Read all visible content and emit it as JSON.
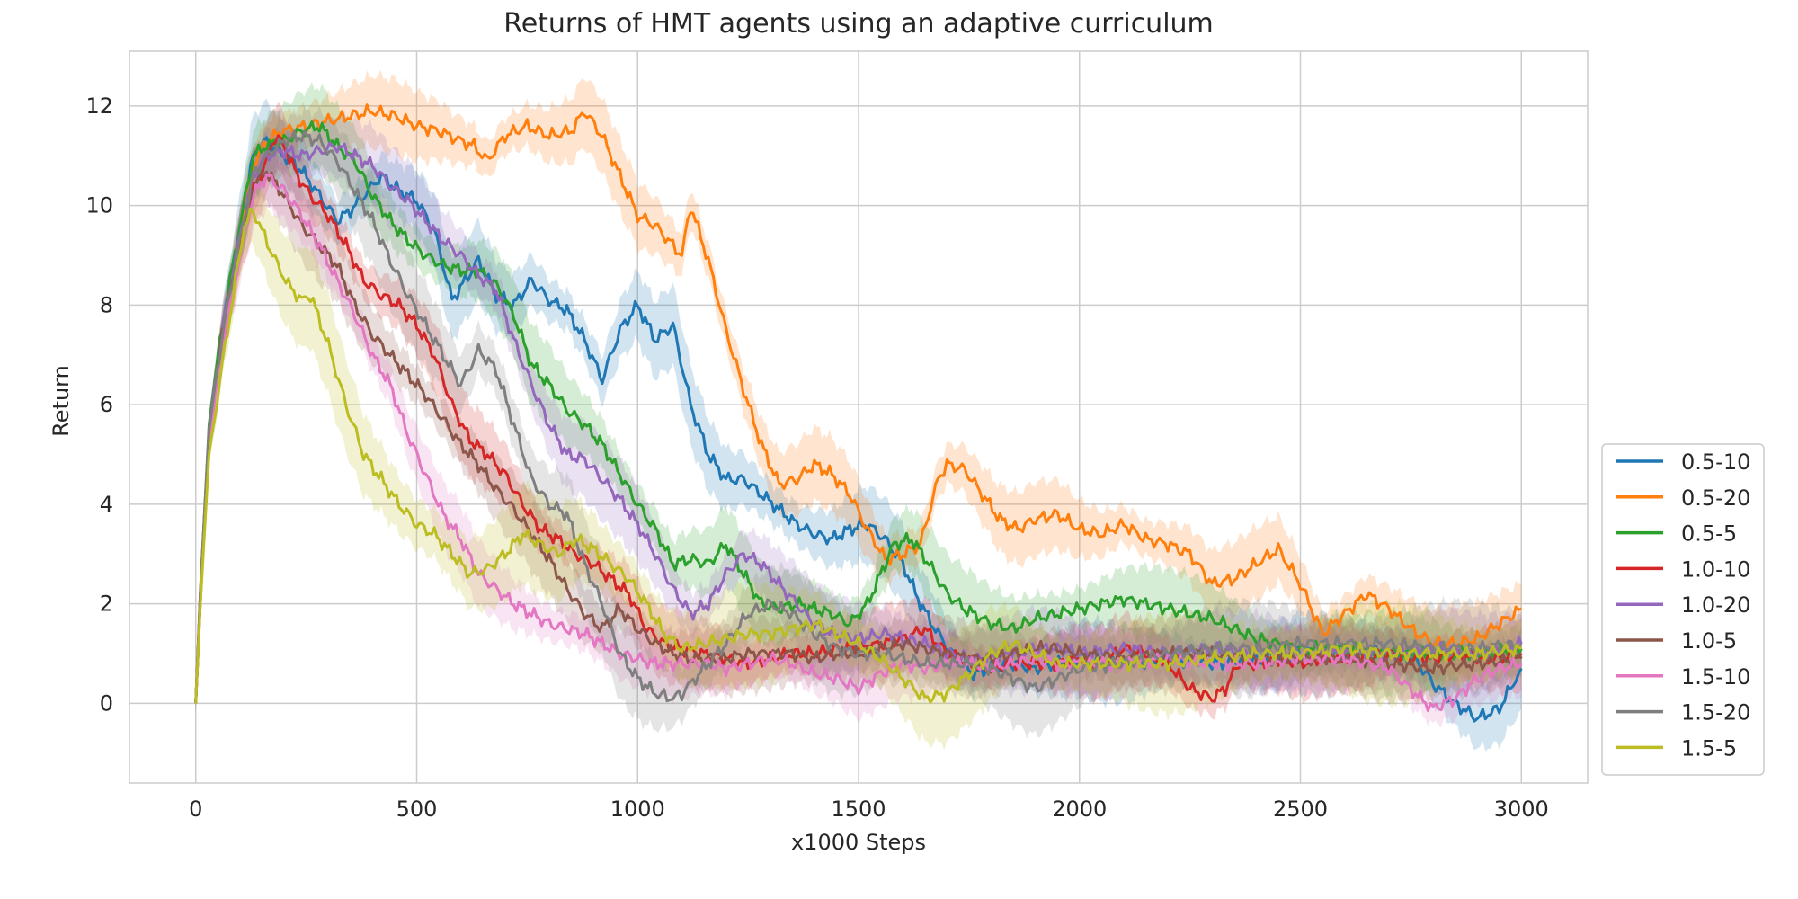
{
  "chart_data": {
    "type": "line",
    "title": "Returns of HMT agents using an adaptive curriculum",
    "xlabel": "x1000 Steps",
    "ylabel": "Return",
    "xlim": [
      -150,
      3150
    ],
    "ylim": [
      -1.6,
      13.1
    ],
    "xticks": [
      0,
      500,
      1000,
      1500,
      2000,
      2500,
      3000
    ],
    "yticks": [
      0,
      2,
      4,
      6,
      8,
      10,
      12
    ],
    "grid": true,
    "legend_position": "lower-right-outside",
    "series": [
      {
        "name": "0.5-10",
        "color": "#1f77b4",
        "band": 0.6,
        "x": [
          0,
          10,
          30,
          60,
          100,
          130,
          160,
          200,
          240,
          280,
          320,
          350,
          380,
          420,
          460,
          500,
          540,
          580,
          610,
          640,
          680,
          720,
          760,
          800,
          840,
          880,
          920,
          960,
          1000,
          1040,
          1080,
          1120,
          1160,
          1200,
          1240,
          1280,
          1320,
          1360,
          1400,
          1440,
          1480,
          1520,
          1560,
          1600,
          1640,
          1680,
          1720,
          1760,
          1800,
          1850,
          1900,
          2000,
          2100,
          2200,
          2300,
          2400,
          2500,
          2600,
          2700,
          2760,
          2800,
          2850,
          2900,
          2950,
          3000
        ],
        "y": [
          0,
          2.0,
          5.5,
          7.5,
          9.5,
          11.0,
          11.3,
          11.0,
          10.7,
          10.2,
          9.7,
          9.9,
          10.2,
          10.6,
          10.3,
          10.1,
          9.5,
          8.1,
          8.5,
          8.9,
          8.2,
          8.0,
          8.5,
          8.1,
          7.9,
          7.3,
          6.5,
          7.5,
          8.0,
          7.3,
          7.6,
          6.0,
          5.0,
          4.5,
          4.5,
          4.2,
          3.9,
          3.6,
          3.4,
          3.3,
          3.5,
          3.6,
          3.3,
          2.8,
          2.0,
          1.4,
          0.9,
          0.6,
          0.7,
          0.8,
          0.7,
          0.9,
          0.8,
          0.9,
          0.8,
          0.9,
          1.0,
          1.0,
          1.0,
          0.9,
          0.4,
          0.0,
          -0.3,
          -0.1,
          0.7
        ]
      },
      {
        "name": "0.5-20",
        "color": "#ff7f0e",
        "band": 0.55,
        "x": [
          0,
          10,
          30,
          60,
          100,
          130,
          160,
          200,
          250,
          300,
          350,
          400,
          450,
          500,
          550,
          600,
          630,
          660,
          700,
          750,
          800,
          850,
          880,
          920,
          960,
          1000,
          1040,
          1080,
          1100,
          1120,
          1160,
          1200,
          1240,
          1280,
          1320,
          1360,
          1400,
          1440,
          1480,
          1520,
          1560,
          1600,
          1640,
          1680,
          1700,
          1740,
          1780,
          1820,
          1860,
          1900,
          1950,
          2000,
          2050,
          2100,
          2150,
          2200,
          2250,
          2300,
          2350,
          2400,
          2450,
          2500,
          2550,
          2600,
          2650,
          2700,
          2750,
          2800,
          2850,
          2900,
          2950,
          3000
        ],
        "y": [
          0,
          2.2,
          5.5,
          7.5,
          9.5,
          10.8,
          11.3,
          11.5,
          11.6,
          11.7,
          11.8,
          11.9,
          11.8,
          11.6,
          11.5,
          11.3,
          11.2,
          10.9,
          11.4,
          11.6,
          11.4,
          11.5,
          11.9,
          11.4,
          10.6,
          9.8,
          9.6,
          9.2,
          9.0,
          10.0,
          8.9,
          7.5,
          6.3,
          5.2,
          4.4,
          4.5,
          4.8,
          4.6,
          4.2,
          3.5,
          2.9,
          3.0,
          3.2,
          4.5,
          4.8,
          4.7,
          4.2,
          3.7,
          3.5,
          3.7,
          3.8,
          3.5,
          3.4,
          3.6,
          3.3,
          3.2,
          3.0,
          2.4,
          2.5,
          2.8,
          3.1,
          2.4,
          1.4,
          1.8,
          2.2,
          1.9,
          1.5,
          1.2,
          1.2,
          1.3,
          1.6,
          1.9
        ]
      },
      {
        "name": "0.5-5",
        "color": "#2ca02c",
        "band": 0.6,
        "x": [
          0,
          10,
          30,
          60,
          100,
          130,
          160,
          200,
          240,
          280,
          320,
          360,
          400,
          440,
          480,
          520,
          560,
          600,
          640,
          680,
          720,
          760,
          800,
          840,
          880,
          920,
          960,
          1000,
          1040,
          1080,
          1120,
          1160,
          1200,
          1240,
          1280,
          1320,
          1360,
          1400,
          1440,
          1480,
          1520,
          1560,
          1580,
          1620,
          1660,
          1700,
          1740,
          1800,
          1850,
          1900,
          1950,
          2000,
          2050,
          2100,
          2150,
          2200,
          2250,
          2300,
          2350,
          2400,
          2450,
          2500,
          2600,
          2700,
          2800,
          2900,
          3000
        ],
        "y": [
          0,
          2.1,
          5.6,
          7.6,
          9.6,
          11.0,
          11.2,
          11.3,
          11.5,
          11.6,
          11.2,
          10.9,
          10.2,
          9.7,
          9.3,
          9.0,
          8.8,
          8.7,
          8.7,
          8.4,
          7.8,
          6.8,
          6.4,
          5.9,
          5.6,
          5.2,
          4.6,
          4.0,
          3.5,
          2.8,
          2.9,
          2.8,
          3.2,
          2.6,
          2.0,
          1.9,
          2.0,
          1.9,
          1.8,
          1.6,
          2.0,
          2.8,
          3.2,
          3.3,
          2.8,
          2.2,
          1.9,
          1.6,
          1.5,
          1.7,
          1.8,
          1.9,
          2.0,
          2.1,
          2.0,
          1.9,
          1.8,
          1.7,
          1.5,
          1.3,
          1.2,
          1.1,
          1.1,
          1.0,
          1.0,
          1.0,
          1.1
        ]
      },
      {
        "name": "1.0-10",
        "color": "#d62728",
        "band": 0.55,
        "x": [
          0,
          10,
          30,
          60,
          100,
          130,
          160,
          180,
          200,
          230,
          260,
          300,
          340,
          380,
          420,
          460,
          500,
          540,
          580,
          620,
          660,
          700,
          740,
          780,
          820,
          860,
          900,
          940,
          980,
          1020,
          1060,
          1100,
          1150,
          1200,
          1250,
          1300,
          1350,
          1400,
          1450,
          1500,
          1550,
          1600,
          1650,
          1700,
          1750,
          1800,
          1850,
          1900,
          1950,
          2000,
          2050,
          2100,
          2150,
          2200,
          2250,
          2300,
          2330,
          2360,
          2400,
          2450,
          2500,
          2550,
          2600,
          2650,
          2700,
          2750,
          2800,
          2850,
          2900,
          2950,
          3000
        ],
        "y": [
          0,
          2.0,
          5.4,
          7.4,
          9.2,
          10.3,
          10.9,
          11.4,
          11.2,
          10.6,
          10.2,
          9.8,
          9.2,
          8.5,
          8.2,
          8.0,
          7.6,
          7.0,
          6.0,
          5.3,
          5.0,
          4.6,
          4.0,
          3.5,
          3.3,
          3.0,
          2.8,
          2.5,
          2.2,
          1.5,
          1.2,
          1.1,
          1.0,
          0.9,
          0.8,
          0.9,
          1.0,
          1.0,
          1.1,
          1.1,
          1.2,
          1.3,
          1.5,
          1.0,
          0.8,
          0.7,
          0.8,
          0.8,
          0.8,
          0.9,
          0.8,
          1.1,
          1.0,
          0.8,
          0.3,
          0.1,
          0.3,
          0.8,
          0.8,
          0.9,
          0.8,
          0.9,
          0.9,
          0.9,
          1.0,
          0.9,
          0.9,
          1.0,
          0.9,
          0.9,
          1.0
        ]
      },
      {
        "name": "1.0-20",
        "color": "#9467bd",
        "band": 0.6,
        "x": [
          0,
          10,
          30,
          60,
          100,
          130,
          160,
          200,
          240,
          280,
          320,
          360,
          400,
          440,
          480,
          520,
          560,
          600,
          640,
          680,
          720,
          760,
          800,
          840,
          880,
          920,
          960,
          1000,
          1040,
          1080,
          1120,
          1160,
          1200,
          1240,
          1280,
          1320,
          1360,
          1400,
          1440,
          1500,
          1560,
          1600,
          1650,
          1700,
          1750,
          1800,
          1850,
          1900,
          1950,
          2000,
          2100,
          2200,
          2300,
          2400,
          2500,
          2600,
          2700,
          2800,
          2900,
          3000
        ],
        "y": [
          0,
          2.1,
          5.5,
          7.5,
          9.4,
          10.6,
          11.0,
          11.1,
          11.0,
          11.1,
          11.2,
          11.0,
          10.8,
          10.4,
          10.1,
          9.7,
          9.3,
          9.0,
          8.6,
          8.3,
          7.3,
          6.4,
          5.6,
          5.0,
          4.9,
          4.5,
          4.1,
          3.6,
          3.0,
          2.3,
          1.8,
          2.0,
          2.6,
          3.0,
          2.8,
          2.4,
          2.0,
          1.6,
          1.4,
          1.3,
          1.4,
          1.3,
          1.2,
          1.0,
          0.9,
          0.9,
          1.0,
          1.1,
          1.1,
          1.0,
          1.1,
          1.0,
          1.1,
          1.0,
          1.0,
          1.0,
          1.0,
          1.1,
          1.0,
          1.2
        ]
      },
      {
        "name": "1.0-5",
        "color": "#8c564b",
        "band": 0.55,
        "x": [
          0,
          10,
          30,
          60,
          100,
          130,
          160,
          200,
          240,
          280,
          320,
          360,
          400,
          440,
          480,
          520,
          560,
          600,
          640,
          680,
          720,
          760,
          800,
          840,
          880,
          920,
          960,
          1000,
          1040,
          1080,
          1120,
          1160,
          1200,
          1250,
          1300,
          1350,
          1400,
          1450,
          1500,
          1550,
          1600,
          1650,
          1700,
          1750,
          1800,
          1850,
          1900,
          1950,
          2000,
          2100,
          2200,
          2300,
          2400,
          2500,
          2600,
          2700,
          2800,
          2900,
          3000
        ],
        "y": [
          0,
          1.9,
          5.4,
          7.4,
          9.1,
          10.4,
          10.7,
          10.2,
          9.6,
          9.2,
          8.8,
          8.0,
          7.4,
          7.0,
          6.6,
          6.2,
          5.7,
          5.2,
          4.8,
          4.3,
          3.9,
          3.4,
          2.9,
          2.3,
          1.8,
          1.5,
          1.9,
          1.5,
          1.2,
          1.0,
          0.9,
          0.9,
          0.9,
          1.0,
          1.0,
          1.0,
          0.9,
          1.0,
          1.0,
          1.1,
          1.2,
          1.1,
          1.0,
          0.9,
          0.9,
          1.0,
          1.1,
          1.1,
          1.0,
          0.9,
          1.0,
          1.0,
          0.9,
          0.9,
          0.9,
          0.8,
          0.7,
          0.8,
          0.9
        ]
      },
      {
        "name": "1.5-10",
        "color": "#e377c2",
        "band": 0.5,
        "x": [
          0,
          10,
          30,
          60,
          100,
          130,
          160,
          200,
          240,
          280,
          320,
          360,
          400,
          440,
          480,
          520,
          560,
          600,
          640,
          680,
          720,
          760,
          800,
          840,
          880,
          920,
          960,
          1000,
          1040,
          1080,
          1120,
          1160,
          1200,
          1250,
          1300,
          1350,
          1400,
          1450,
          1500,
          1550,
          1600,
          1650,
          1700,
          1750,
          1800,
          1850,
          1900,
          1950,
          2000,
          2100,
          2200,
          2300,
          2400,
          2500,
          2600,
          2700,
          2760,
          2800,
          2850,
          2900,
          2950,
          3000
        ],
        "y": [
          0,
          2.0,
          5.3,
          7.2,
          9.0,
          10.2,
          10.6,
          10.3,
          9.8,
          9.2,
          8.5,
          7.8,
          7.0,
          6.4,
          5.4,
          4.6,
          3.8,
          3.3,
          2.6,
          2.3,
          2.0,
          1.8,
          1.6,
          1.5,
          1.4,
          1.2,
          1.0,
          0.9,
          0.8,
          0.8,
          0.8,
          0.8,
          0.7,
          0.8,
          0.9,
          0.8,
          0.6,
          0.5,
          0.3,
          0.6,
          0.8,
          0.7,
          0.8,
          0.8,
          0.7,
          0.8,
          0.9,
          0.8,
          0.8,
          0.8,
          0.9,
          0.8,
          0.8,
          0.9,
          0.9,
          0.7,
          0.2,
          -0.1,
          0.1,
          0.5,
          0.7,
          0.8
        ]
      },
      {
        "name": "1.5-20",
        "color": "#7f7f7f",
        "band": 0.7,
        "x": [
          0,
          10,
          30,
          60,
          100,
          130,
          160,
          200,
          240,
          280,
          320,
          360,
          400,
          440,
          480,
          520,
          560,
          600,
          640,
          680,
          720,
          760,
          800,
          840,
          880,
          920,
          960,
          1000,
          1040,
          1060,
          1080,
          1100,
          1120,
          1160,
          1200,
          1250,
          1300,
          1350,
          1400,
          1450,
          1500,
          1550,
          1600,
          1650,
          1700,
          1750,
          1800,
          1850,
          1900,
          1950,
          2000,
          2100,
          2200,
          2300,
          2400,
          2500,
          2600,
          2700,
          2800,
          2900,
          3000
        ],
        "y": [
          0,
          2.1,
          5.5,
          7.4,
          9.3,
          10.6,
          11.0,
          11.3,
          11.4,
          11.3,
          10.9,
          10.3,
          9.7,
          8.9,
          8.2,
          7.6,
          7.0,
          6.4,
          7.1,
          6.7,
          5.6,
          4.5,
          4.0,
          3.8,
          2.8,
          2.0,
          1.0,
          0.5,
          0.2,
          0.15,
          0.1,
          0.2,
          0.4,
          0.8,
          1.2,
          1.8,
          2.0,
          1.8,
          1.4,
          1.1,
          1.0,
          1.0,
          0.9,
          0.8,
          0.8,
          0.8,
          0.7,
          0.5,
          0.3,
          0.5,
          0.7,
          0.8,
          1.0,
          1.1,
          1.1,
          1.2,
          1.2,
          1.2,
          1.1,
          1.1,
          1.2
        ]
      },
      {
        "name": "1.5-5",
        "color": "#bcbd22",
        "band": 0.75,
        "x": [
          0,
          10,
          30,
          60,
          90,
          110,
          130,
          150,
          180,
          210,
          240,
          260,
          300,
          340,
          380,
          420,
          460,
          500,
          540,
          580,
          620,
          660,
          700,
          740,
          780,
          820,
          860,
          900,
          940,
          980,
          1020,
          1060,
          1100,
          1150,
          1200,
          1250,
          1300,
          1350,
          1400,
          1450,
          1500,
          1550,
          1600,
          1650,
          1700,
          1750,
          1800,
          1850,
          1900,
          1950,
          2000,
          2100,
          2200,
          2300,
          2400,
          2500,
          2600,
          2700,
          2800,
          2900,
          3000
        ],
        "y": [
          0,
          1.9,
          5.0,
          6.8,
          8.5,
          9.6,
          9.9,
          9.5,
          8.9,
          8.4,
          8.1,
          8.2,
          7.2,
          6.0,
          5.0,
          4.5,
          4.0,
          3.6,
          3.4,
          3.0,
          2.6,
          2.7,
          3.0,
          3.4,
          3.2,
          3.0,
          3.3,
          3.1,
          2.8,
          2.5,
          2.0,
          1.4,
          1.1,
          1.2,
          1.3,
          1.4,
          1.4,
          1.5,
          1.6,
          1.4,
          1.2,
          0.9,
          0.5,
          0.1,
          0.2,
          0.6,
          1.0,
          1.2,
          1.0,
          0.8,
          0.8,
          0.8,
          0.8,
          0.9,
          1.0,
          1.0,
          1.1,
          1.0,
          1.0,
          1.0,
          1.1
        ]
      }
    ]
  }
}
